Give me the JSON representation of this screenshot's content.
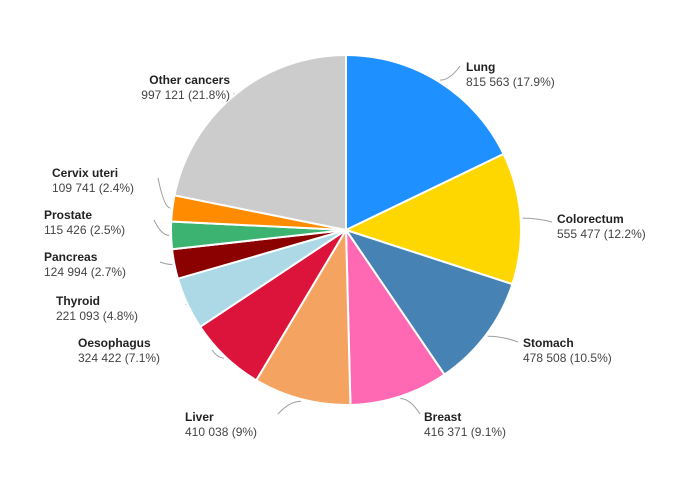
{
  "chart_data": {
    "type": "pie",
    "title": "",
    "start_angle_deg": 0,
    "direction": "clockwise",
    "slice_border_color": "#ffffff",
    "leader_line_color": "#9e9e9e",
    "slices": [
      {
        "name": "Lung",
        "value": 815563,
        "value_label": "815 563 (17.9%)",
        "percent": 17.9,
        "color": "#1E90FF"
      },
      {
        "name": "Colorectum",
        "value": 555477,
        "value_label": "555 477 (12.2%)",
        "percent": 12.2,
        "color": "#FFD700"
      },
      {
        "name": "Stomach",
        "value": 478508,
        "value_label": "478 508 (10.5%)",
        "percent": 10.5,
        "color": "#4682B4"
      },
      {
        "name": "Breast",
        "value": 416371,
        "value_label": "416 371 (9.1%)",
        "percent": 9.1,
        "color": "#FF69B4"
      },
      {
        "name": "Liver",
        "value": 410038,
        "value_label": "410 038 (9%)",
        "percent": 9.0,
        "color": "#F4A460"
      },
      {
        "name": "Oesophagus",
        "value": 324422,
        "value_label": "324 422 (7.1%)",
        "percent": 7.1,
        "color": "#DC143C"
      },
      {
        "name": "Thyroid",
        "value": 221093,
        "value_label": "221 093 (4.8%)",
        "percent": 4.8,
        "color": "#ADD8E6"
      },
      {
        "name": "Pancreas",
        "value": 124994,
        "value_label": "124 994 (2.7%)",
        "percent": 2.7,
        "color": "#8B0000"
      },
      {
        "name": "Prostate",
        "value": 115426,
        "value_label": "115 426 (2.5%)",
        "percent": 2.5,
        "color": "#3CB371"
      },
      {
        "name": "Cervix uteri",
        "value": 109741,
        "value_label": "109 741 (2.4%)",
        "percent": 2.4,
        "color": "#FF8C00"
      },
      {
        "name": "Other cancers",
        "value": 997121,
        "value_label": "997 121 (21.8%)",
        "percent": 21.8,
        "color": "#CCCCCC"
      }
    ]
  }
}
